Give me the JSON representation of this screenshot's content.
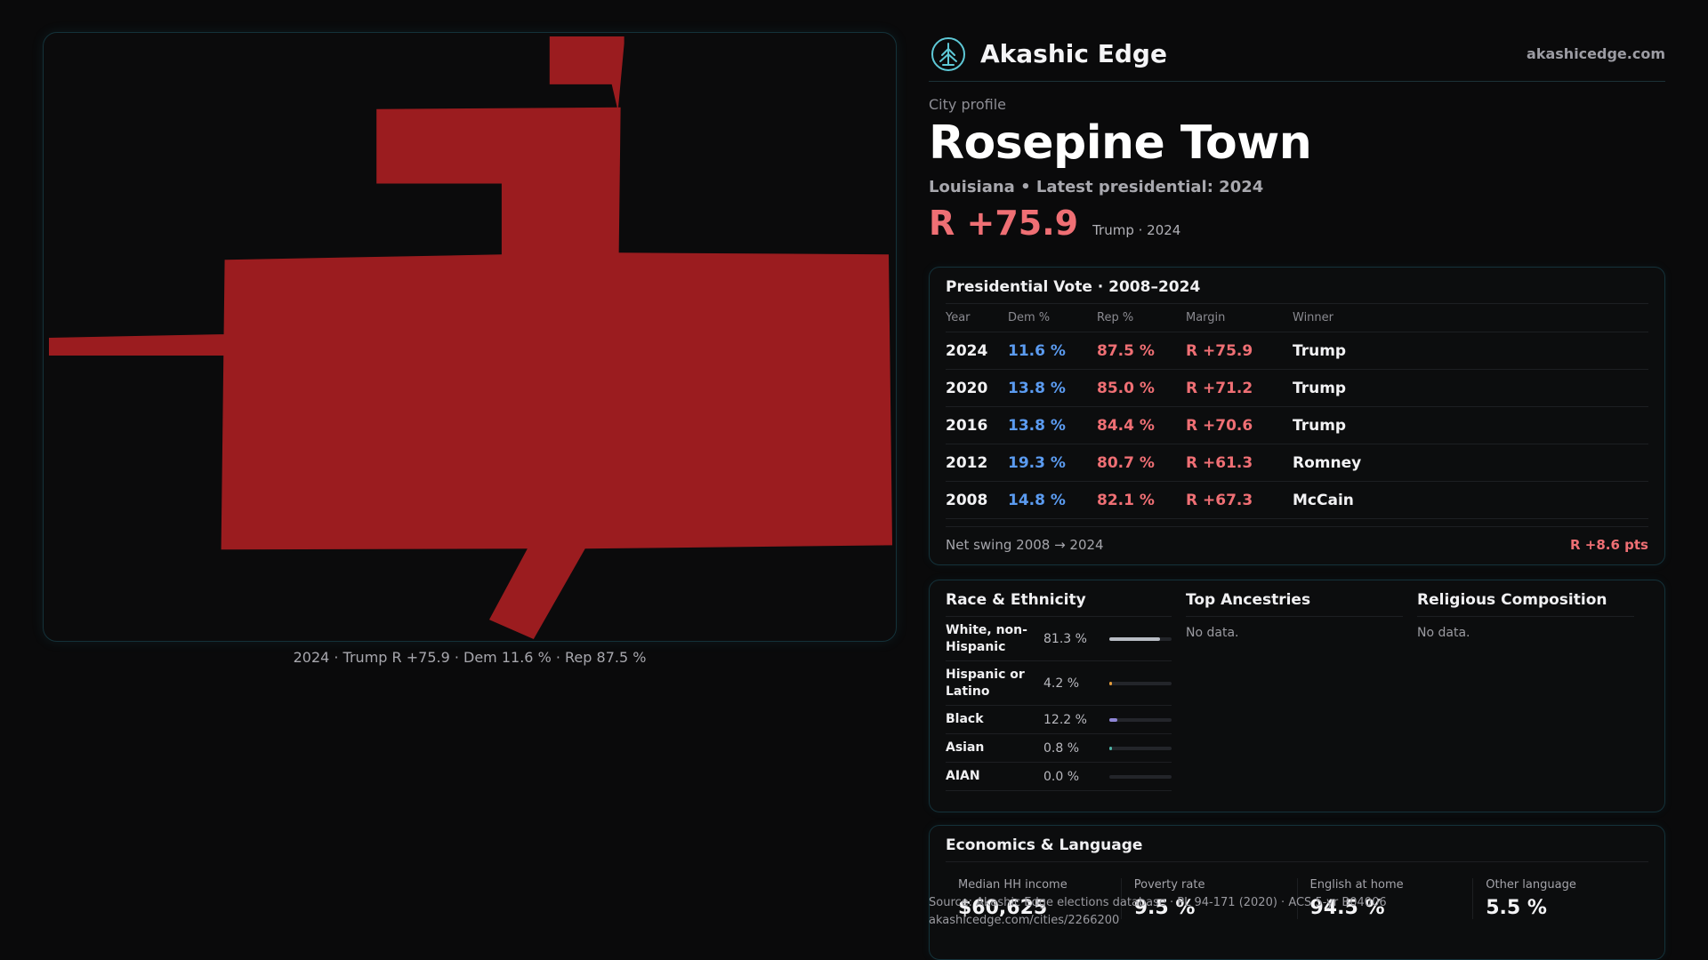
{
  "brand": {
    "name": "Akashic Edge",
    "url": "akashicedge.com",
    "logo_icon": "tree-emblem-icon",
    "accent": "#5ec8d6"
  },
  "header": {
    "kicker": "City profile",
    "city": "Rosepine Town",
    "subline": "Louisiana • Latest presidential: 2024",
    "margin": "R +75.9",
    "margin_note": "Trump · 2024"
  },
  "map": {
    "caption": "2024 · Trump R +75.9 · Dem 11.6 % · Rep 87.5 %",
    "fill_color": "#9b1c1f"
  },
  "vote": {
    "title": "Presidential Vote · 2008–2024",
    "headers": {
      "year": "Year",
      "dem": "Dem %",
      "rep": "Rep %",
      "margin": "Margin",
      "winner": "Winner"
    },
    "rows": [
      {
        "year": "2024",
        "dem": "11.6 %",
        "rep": "87.5 %",
        "margin": "R +75.9",
        "winner": "Trump"
      },
      {
        "year": "2020",
        "dem": "13.8 %",
        "rep": "85.0 %",
        "margin": "R +71.2",
        "winner": "Trump"
      },
      {
        "year": "2016",
        "dem": "13.8 %",
        "rep": "84.4 %",
        "margin": "R +70.6",
        "winner": "Trump"
      },
      {
        "year": "2012",
        "dem": "19.3 %",
        "rep": "80.7 %",
        "margin": "R +61.3",
        "winner": "Romney"
      },
      {
        "year": "2008",
        "dem": "14.8 %",
        "rep": "82.1 %",
        "margin": "R +67.3",
        "winner": "McCain"
      }
    ],
    "swing_label": "Net swing 2008 → 2024",
    "swing_value": "R +8.6 pts",
    "colors": {
      "dem": "#5b9bf0",
      "rep": "#ef6f74"
    }
  },
  "race": {
    "title": "Race & Ethnicity",
    "rows": [
      {
        "label": "White, non-Hispanic",
        "value": "81.3 %",
        "fraction": 0.813,
        "color": "#b8bcc4"
      },
      {
        "label": "Hispanic or Latino",
        "value": "4.2 %",
        "fraction": 0.042,
        "color": "#e39b3a"
      },
      {
        "label": "Black",
        "value": "12.2 %",
        "fraction": 0.122,
        "color": "#8f86d6"
      },
      {
        "label": "Asian",
        "value": "0.8 %",
        "fraction": 0.008,
        "color": "#4fb3a5"
      },
      {
        "label": "AIAN",
        "value": "0.0 %",
        "fraction": 0.0,
        "color": "#c77dba"
      }
    ]
  },
  "ancestries": {
    "title": "Top Ancestries",
    "empty": "No data."
  },
  "religion": {
    "title": "Religious Composition",
    "empty": "No data."
  },
  "economics": {
    "title": "Economics & Language",
    "items": [
      {
        "label": "Median HH income",
        "value": "$60,625"
      },
      {
        "label": "Poverty rate",
        "value": "9.5 %"
      },
      {
        "label": "English at home",
        "value": "94.5 %"
      },
      {
        "label": "Other language",
        "value": "5.5 %"
      }
    ]
  },
  "source": {
    "line1": "Source: Akashic Edge elections database · PL 94-171 (2020) · ACS 5-yr B04006",
    "line2": "akashicedge.com/cities/2266200"
  }
}
